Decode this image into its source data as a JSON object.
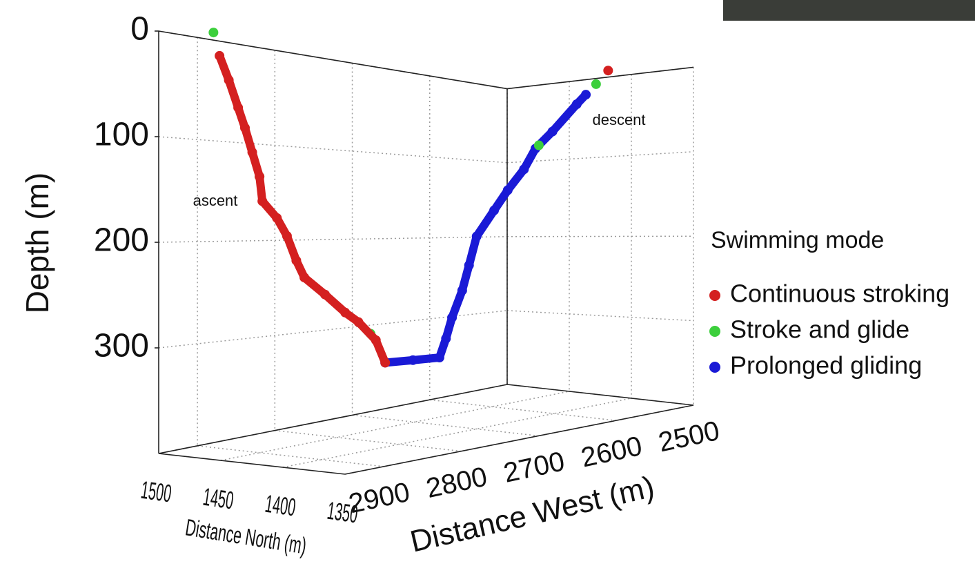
{
  "chart_data": {
    "type": "line3d",
    "xlabel": "Distance North (m)",
    "ylabel": "Distance West (m)",
    "zlabel": "Depth (m)",
    "xlim": [
      1350,
      1500
    ],
    "ylim": [
      2500,
      2950
    ],
    "zlim": [
      0,
      400
    ],
    "xticks": [
      1500,
      1450,
      1400,
      1350
    ],
    "yticks": [
      2900,
      2800,
      2700,
      2600,
      2500
    ],
    "zticks": [
      0,
      100,
      200,
      300
    ],
    "grid": true,
    "legend_title": "Swimming mode",
    "legend": "right",
    "annotations": [
      "ascent",
      "descent"
    ],
    "series": [
      {
        "name": "Continuous stroking",
        "color": "#d42020",
        "north": [
          1380,
          1385,
          1394,
          1401,
          1411,
          1422,
          1426,
          1431,
          1436,
          1444,
          1445,
          1449,
          1453,
          1456,
          1461,
          1466,
          null,
          1400
        ],
        "west": [
          2850,
          2854,
          2862,
          2868,
          2878,
          2887,
          2891,
          2895,
          2900,
          2906,
          2908,
          2911,
          2914,
          2918,
          2922,
          2926,
          null,
          2530
        ],
        "depth": [
          314,
          293,
          276,
          267,
          250,
          234,
          218,
          195,
          178,
          162,
          139,
          116,
          93,
          74,
          48,
          25,
          null,
          0
        ]
      },
      {
        "name": "Stroke and glide",
        "color": "#3ccf3c",
        "north": [
          1469,
          null,
          1445,
          null,
          1388,
          null,
          1396,
          null,
          1381
        ],
        "west": [
          2929,
          null,
          2908,
          null,
          2856,
          null,
          2552,
          null,
          2650
        ],
        "depth": [
          3,
          null,
          139,
          null,
          287,
          null,
          20,
          null,
          100
        ]
      },
      {
        "name": "Prolonged gliding",
        "color": "#1a1ad6",
        "north": [
          1393,
          1391,
          1385,
          1380,
          1378,
          1373,
          1369,
          1365,
          1363,
          1361,
          1358,
          1356,
          1355,
          1367,
          1380
        ],
        "west": [
          2570,
          2585,
          2626,
          2656,
          2674,
          2703,
          2727,
          2756,
          2769,
          2781,
          2799,
          2810,
          2820,
          2835,
          2850
        ],
        "depth": [
          35,
          48,
          83,
          104,
          127,
          150,
          171,
          197,
          225,
          249,
          274,
          293,
          310,
          312,
          314
        ]
      }
    ]
  }
}
